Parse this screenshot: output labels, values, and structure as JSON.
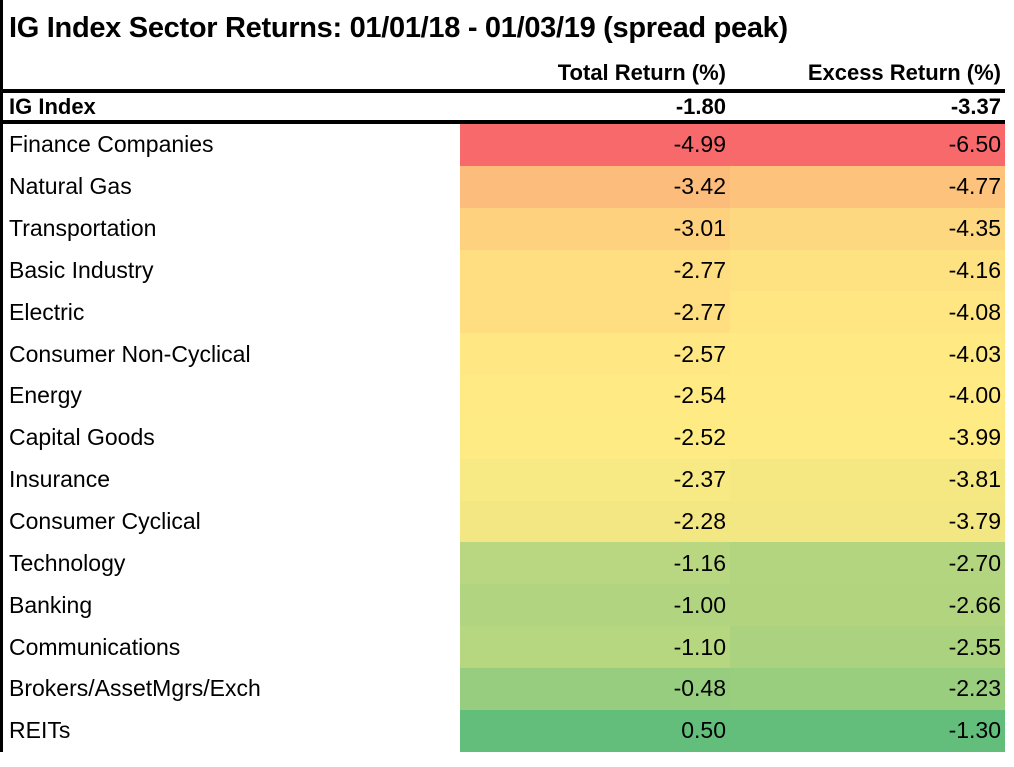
{
  "title": "IG Index Sector Returns: 01/01/18 - 01/03/19 (spread peak)",
  "header": {
    "total_label": "Total Return (%)",
    "excess_label": "Excess Return (%)"
  },
  "ig_row": {
    "label": "IG Index",
    "total": "-1.80",
    "excess": "-3.37"
  },
  "rows": [
    {
      "sector": "Finance Companies",
      "total": "-4.99",
      "excess": "-6.50",
      "total_color": "#F8696B",
      "excess_color": "#F8696B"
    },
    {
      "sector": "Natural Gas",
      "total": "-3.42",
      "excess": "-4.77",
      "total_color": "#FCBC7B",
      "excess_color": "#FDC37C"
    },
    {
      "sector": "Transportation",
      "total": "-3.01",
      "excess": "-4.35",
      "total_color": "#FED17F",
      "excess_color": "#FED880"
    },
    {
      "sector": "Basic Industry",
      "total": "-2.77",
      "excess": "-4.16",
      "total_color": "#FEDE81",
      "excess_color": "#FEE282"
    },
    {
      "sector": "Electric",
      "total": "-2.77",
      "excess": "-4.08",
      "total_color": "#FEDE81",
      "excess_color": "#FFE683"
    },
    {
      "sector": "Consumer Non-Cyclical",
      "total": "-2.57",
      "excess": "-4.03",
      "total_color": "#FFE883",
      "excess_color": "#FFE983"
    },
    {
      "sector": "Energy",
      "total": "-2.54",
      "excess": "-4.00",
      "total_color": "#FFEA84",
      "excess_color": "#FFEA84"
    },
    {
      "sector": "Capital Goods",
      "total": "-2.52",
      "excess": "-3.99",
      "total_color": "#FFEB84",
      "excess_color": "#FFEB84"
    },
    {
      "sector": "Insurance",
      "total": "-2.37",
      "excess": "-3.81",
      "total_color": "#F7E984",
      "excess_color": "#F5E883"
    },
    {
      "sector": "Consumer Cyclical",
      "total": "-2.28",
      "excess": "-3.79",
      "total_color": "#F3E783",
      "excess_color": "#F3E783"
    },
    {
      "sector": "Technology",
      "total": "-1.16",
      "excess": "-2.70",
      "total_color": "#B9D780",
      "excess_color": "#B4D580"
    },
    {
      "sector": "Banking",
      "total": "-1.00",
      "excess": "-2.66",
      "total_color": "#B1D480",
      "excess_color": "#B2D47F"
    },
    {
      "sector": "Communications",
      "total": "-1.10",
      "excess": "-2.55",
      "total_color": "#B6D680",
      "excess_color": "#ABD27F"
    },
    {
      "sector": "Brokers/AssetMgrs/Exch",
      "total": "-0.48",
      "excess": "-2.23",
      "total_color": "#96CD7E",
      "excess_color": "#99CE7E"
    },
    {
      "sector": "REITs",
      "total": "0.50",
      "excess": "-1.30",
      "total_color": "#63BE7B",
      "excess_color": "#63BE7B"
    }
  ],
  "chart_data": {
    "type": "heatmap",
    "title": "IG Index Sector Returns: 01/01/18 - 01/03/19 (spread peak)",
    "categories": [
      "Finance Companies",
      "Natural Gas",
      "Transportation",
      "Basic Industry",
      "Electric",
      "Consumer Non-Cyclical",
      "Energy",
      "Capital Goods",
      "Insurance",
      "Consumer Cyclical",
      "Technology",
      "Banking",
      "Communications",
      "Brokers/AssetMgrs/Exch",
      "REITs"
    ],
    "series": [
      {
        "name": "Total Return (%)",
        "values": [
          -4.99,
          -3.42,
          -3.01,
          -2.77,
          -2.77,
          -2.57,
          -2.54,
          -2.52,
          -2.37,
          -2.28,
          -1.16,
          -1.0,
          -1.1,
          -0.48,
          0.5
        ]
      },
      {
        "name": "Excess Return (%)",
        "values": [
          -6.5,
          -4.77,
          -4.35,
          -4.16,
          -4.08,
          -4.03,
          -4.0,
          -3.99,
          -3.81,
          -3.79,
          -2.7,
          -2.66,
          -2.55,
          -2.23,
          -1.3
        ]
      }
    ],
    "benchmark": {
      "name": "IG Index",
      "total_return_pct": -1.8,
      "excess_return_pct": -3.37
    },
    "color_scale": {
      "min_color": "#F8696B",
      "mid_color": "#FFEB84",
      "max_color": "#63BE7B"
    },
    "layout": {
      "sort": "by excess return ascending severity",
      "grid": "off",
      "legend": "none"
    }
  }
}
